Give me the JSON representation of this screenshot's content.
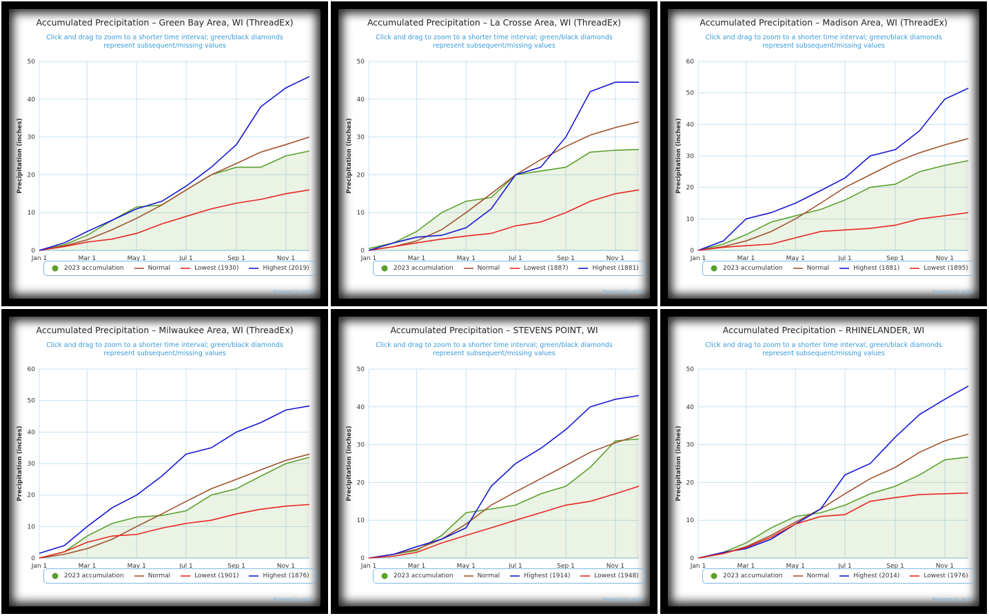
{
  "chart_data": [
    {
      "type": "line",
      "title": "Accumulated Precipitation – Green Bay Area, WI (ThreadEx)",
      "subtitle": "Click and drag to zoom to a shorter time interval; green/black diamonds represent subsequent/missing values",
      "y_label": "Precipitation (inches)",
      "credit": "Powered by ACIS",
      "grid": true,
      "x": [
        1,
        32,
        60,
        91,
        121,
        152,
        182,
        213,
        244,
        274,
        305,
        334
      ],
      "xlim": [
        1,
        334
      ],
      "xticks": [
        {
          "value": 1,
          "label": "Jan 1"
        },
        {
          "value": 60,
          "label": "Mar 1"
        },
        {
          "value": 121,
          "label": "May 1"
        },
        {
          "value": 182,
          "label": "Jul 1"
        },
        {
          "value": 244,
          "label": "Sep 1"
        },
        {
          "value": 305,
          "label": "Nov 1"
        }
      ],
      "ylim": [
        0,
        50
      ],
      "yticks": [
        0,
        10,
        20,
        30,
        40,
        50
      ],
      "series": [
        {
          "name": "2023 accumulation",
          "color": "#5aa02c",
          "values": [
            0,
            1.5,
            4,
            8,
            11.5,
            12,
            16,
            20,
            22,
            22,
            25,
            26.3
          ]
        },
        {
          "name": "Normal",
          "color": "#a0522d",
          "values": [
            0,
            1.2,
            2.8,
            5.5,
            8.5,
            12,
            16,
            20,
            23,
            26,
            28,
            30
          ]
        },
        {
          "name": "Lowest (1930)",
          "color": "#e8251f",
          "values": [
            0,
            1,
            2.2,
            3,
            4.5,
            7,
            9,
            11,
            12.5,
            13.5,
            15,
            16
          ]
        },
        {
          "name": "Highest (2019)",
          "color": "#1515d4",
          "values": [
            0,
            2,
            5,
            8,
            11,
            13,
            17,
            22,
            28,
            38,
            43,
            46
          ]
        }
      ]
    },
    {
      "type": "line",
      "title": "Accumulated Precipitation – La Crosse Area, WI (ThreadEx)",
      "subtitle": "Click and drag to zoom to a shorter time interval; green/black diamonds represent subsequent/missing values",
      "y_label": "Precipitation (inches)",
      "credit": "Powered by ACIS",
      "grid": true,
      "x": [
        1,
        32,
        60,
        91,
        121,
        152,
        182,
        213,
        244,
        274,
        305,
        334
      ],
      "xlim": [
        1,
        334
      ],
      "xticks": [
        {
          "value": 1,
          "label": "Jan 1"
        },
        {
          "value": 60,
          "label": "Mar 1"
        },
        {
          "value": 121,
          "label": "May 1"
        },
        {
          "value": 182,
          "label": "Jul 1"
        },
        {
          "value": 244,
          "label": "Sep 1"
        },
        {
          "value": 305,
          "label": "Nov 1"
        }
      ],
      "ylim": [
        0,
        50
      ],
      "yticks": [
        0,
        10,
        20,
        30,
        40,
        50
      ],
      "series": [
        {
          "name": "2023 accumulation",
          "color": "#5aa02c",
          "values": [
            0.5,
            2,
            5,
            10,
            13,
            14,
            20,
            21,
            22,
            26,
            26.5,
            26.7
          ]
        },
        {
          "name": "Normal",
          "color": "#a0522d",
          "values": [
            0,
            1,
            2.5,
            5.5,
            10,
            15,
            20,
            24,
            27.5,
            30.5,
            32.5,
            34
          ]
        },
        {
          "name": "Lowest (1887)",
          "color": "#e8251f",
          "values": [
            0,
            1,
            2,
            3,
            3.8,
            4.5,
            6.5,
            7.5,
            10,
            13,
            15,
            16
          ]
        },
        {
          "name": "Highest (1881)",
          "color": "#1515d4",
          "values": [
            0,
            2,
            3.5,
            4,
            6,
            11,
            20,
            22,
            30,
            42,
            44.5,
            44.5
          ]
        }
      ]
    },
    {
      "type": "line",
      "title": "Accumulated Precipitation – Madison Area, WI (ThreadEx)",
      "subtitle": "Click and drag to zoom to a shorter time interval; green/black diamonds represent subsequent/missing values",
      "y_label": "Precipitation (inches)",
      "credit": "Powered by ACIS",
      "grid": true,
      "x": [
        1,
        32,
        60,
        91,
        121,
        152,
        182,
        213,
        244,
        274,
        305,
        334
      ],
      "xlim": [
        1,
        334
      ],
      "xticks": [
        {
          "value": 1,
          "label": "Jan 1"
        },
        {
          "value": 60,
          "label": "Mar 1"
        },
        {
          "value": 121,
          "label": "May 1"
        },
        {
          "value": 182,
          "label": "Jul 1"
        },
        {
          "value": 244,
          "label": "Sep 1"
        },
        {
          "value": 305,
          "label": "Nov 1"
        }
      ],
      "ylim": [
        0,
        60
      ],
      "yticks": [
        0,
        10,
        20,
        30,
        40,
        50,
        60
      ],
      "series": [
        {
          "name": "2023 accumulation",
          "color": "#5aa02c",
          "values": [
            0,
            2,
            5,
            9,
            11,
            13,
            16,
            20,
            21,
            25,
            27,
            28.5
          ]
        },
        {
          "name": "Normal",
          "color": "#a0522d",
          "values": [
            0,
            1.2,
            3,
            6,
            10,
            15,
            20,
            24,
            28,
            31,
            33.5,
            35.5
          ]
        },
        {
          "name": "Highest (1881)",
          "color": "#1515d4",
          "values": [
            0,
            3,
            10,
            12,
            15,
            19,
            23,
            30,
            32,
            38,
            48,
            51.5
          ]
        },
        {
          "name": "Lowest (1895)",
          "color": "#e8251f",
          "values": [
            0,
            1,
            1.5,
            2,
            4,
            6,
            6.5,
            7,
            8,
            10,
            11,
            12
          ]
        }
      ]
    },
    {
      "type": "line",
      "title": "Accumulated Precipitation – Milwaukee Area, WI (ThreadEx)",
      "subtitle": "Click and drag to zoom to a shorter time interval; green/black diamonds represent subsequent/missing values",
      "y_label": "Precipitation (inches)",
      "credit": "Powered by ACIS",
      "grid": true,
      "x": [
        1,
        32,
        60,
        91,
        121,
        152,
        182,
        213,
        244,
        274,
        305,
        334
      ],
      "xlim": [
        1,
        334
      ],
      "xticks": [
        {
          "value": 1,
          "label": "Jan 1"
        },
        {
          "value": 60,
          "label": "Mar 1"
        },
        {
          "value": 121,
          "label": "May 1"
        },
        {
          "value": 182,
          "label": "Jul 1"
        },
        {
          "value": 244,
          "label": "Sep 1"
        },
        {
          "value": 305,
          "label": "Nov 1"
        }
      ],
      "ylim": [
        0,
        60
      ],
      "yticks": [
        0,
        10,
        20,
        30,
        40,
        50,
        60
      ],
      "series": [
        {
          "name": "2023 accumulation",
          "color": "#5aa02c",
          "values": [
            0,
            2,
            7,
            11,
            13,
            13.5,
            15,
            20,
            22,
            26,
            30,
            32
          ]
        },
        {
          "name": "Normal",
          "color": "#a0522d",
          "values": [
            0,
            1.2,
            3,
            6,
            10,
            14,
            18,
            22,
            25,
            28,
            31,
            33
          ]
        },
        {
          "name": "Lowest (1901)",
          "color": "#e8251f",
          "values": [
            0,
            2,
            5,
            7,
            7.5,
            9.5,
            11,
            12,
            14,
            15.5,
            16.5,
            17
          ]
        },
        {
          "name": "Highest (1876)",
          "color": "#1515d4",
          "values": [
            1.5,
            4,
            10,
            16,
            20,
            26,
            33,
            35,
            40,
            43,
            47,
            48.3
          ]
        }
      ]
    },
    {
      "type": "line",
      "title": "Accumulated Precipitation – STEVENS POINT, WI",
      "subtitle": "Click and drag to zoom to a shorter time interval; green/black diamonds represent subsequent/missing values",
      "y_label": "Precipitation (inches)",
      "credit": "Powered by ACIS",
      "grid": true,
      "x": [
        1,
        32,
        60,
        91,
        121,
        152,
        182,
        213,
        244,
        274,
        305,
        334
      ],
      "xlim": [
        1,
        334
      ],
      "xticks": [
        {
          "value": 1,
          "label": "Jan 1"
        },
        {
          "value": 60,
          "label": "Mar 1"
        },
        {
          "value": 121,
          "label": "May 1"
        },
        {
          "value": 182,
          "label": "Jul 1"
        },
        {
          "value": 244,
          "label": "Sep 1"
        },
        {
          "value": 305,
          "label": "Nov 1"
        }
      ],
      "ylim": [
        0,
        50
      ],
      "yticks": [
        0,
        10,
        20,
        30,
        40,
        50
      ],
      "series": [
        {
          "name": "2023 accumulation",
          "color": "#5aa02c",
          "values": [
            0,
            1,
            2,
            6,
            12,
            13,
            14,
            17,
            19,
            24,
            31,
            31.5
          ]
        },
        {
          "name": "Normal",
          "color": "#a0522d",
          "values": [
            0,
            1,
            2.3,
            5,
            9,
            14,
            17.5,
            21,
            24.5,
            28,
            30.5,
            32.5
          ]
        },
        {
          "name": "Highest (1914)",
          "color": "#1515d4",
          "values": [
            0,
            1,
            3,
            5,
            8,
            19,
            25,
            29,
            34,
            40,
            42,
            43
          ]
        },
        {
          "name": "Lowest (1948)",
          "color": "#e8251f",
          "values": [
            0,
            0.5,
            1.5,
            4,
            6,
            8,
            10,
            12,
            14,
            15,
            17,
            19
          ]
        }
      ]
    },
    {
      "type": "line",
      "title": "Accumulated Precipitation – RHINELANDER, WI",
      "subtitle": "Click and drag to zoom to a shorter time interval; green/black diamonds represent subsequent/missing values",
      "y_label": "Precipitation (inches)",
      "credit": "Powered by ACIS",
      "grid": true,
      "x": [
        1,
        32,
        60,
        91,
        121,
        152,
        182,
        213,
        244,
        274,
        305,
        334
      ],
      "xlim": [
        1,
        334
      ],
      "xticks": [
        {
          "value": 1,
          "label": "Jan 1"
        },
        {
          "value": 60,
          "label": "Mar 1"
        },
        {
          "value": 121,
          "label": "May 1"
        },
        {
          "value": 182,
          "label": "Jul 1"
        },
        {
          "value": 244,
          "label": "Sep 1"
        },
        {
          "value": 305,
          "label": "Nov 1"
        }
      ],
      "ylim": [
        0,
        50
      ],
      "yticks": [
        0,
        10,
        20,
        30,
        40,
        50
      ],
      "series": [
        {
          "name": "2023 accumulation",
          "color": "#5aa02c",
          "values": [
            0,
            1.5,
            4,
            8,
            11,
            12,
            14,
            17,
            19,
            22,
            26,
            26.7
          ]
        },
        {
          "name": "Normal",
          "color": "#a0522d",
          "values": [
            0,
            1.2,
            3,
            6,
            9.5,
            13,
            17,
            21,
            24,
            28,
            31,
            32.8
          ]
        },
        {
          "name": "Highest (2014)",
          "color": "#1515d4",
          "values": [
            0,
            1.5,
            2.5,
            5,
            9,
            13,
            22,
            25,
            32,
            38,
            42,
            45.5
          ]
        },
        {
          "name": "Lowest (1976)",
          "color": "#e8251f",
          "values": [
            0,
            1.2,
            2.8,
            5.5,
            9,
            11,
            11.5,
            15,
            16,
            16.8,
            17,
            17.2
          ]
        }
      ]
    }
  ]
}
